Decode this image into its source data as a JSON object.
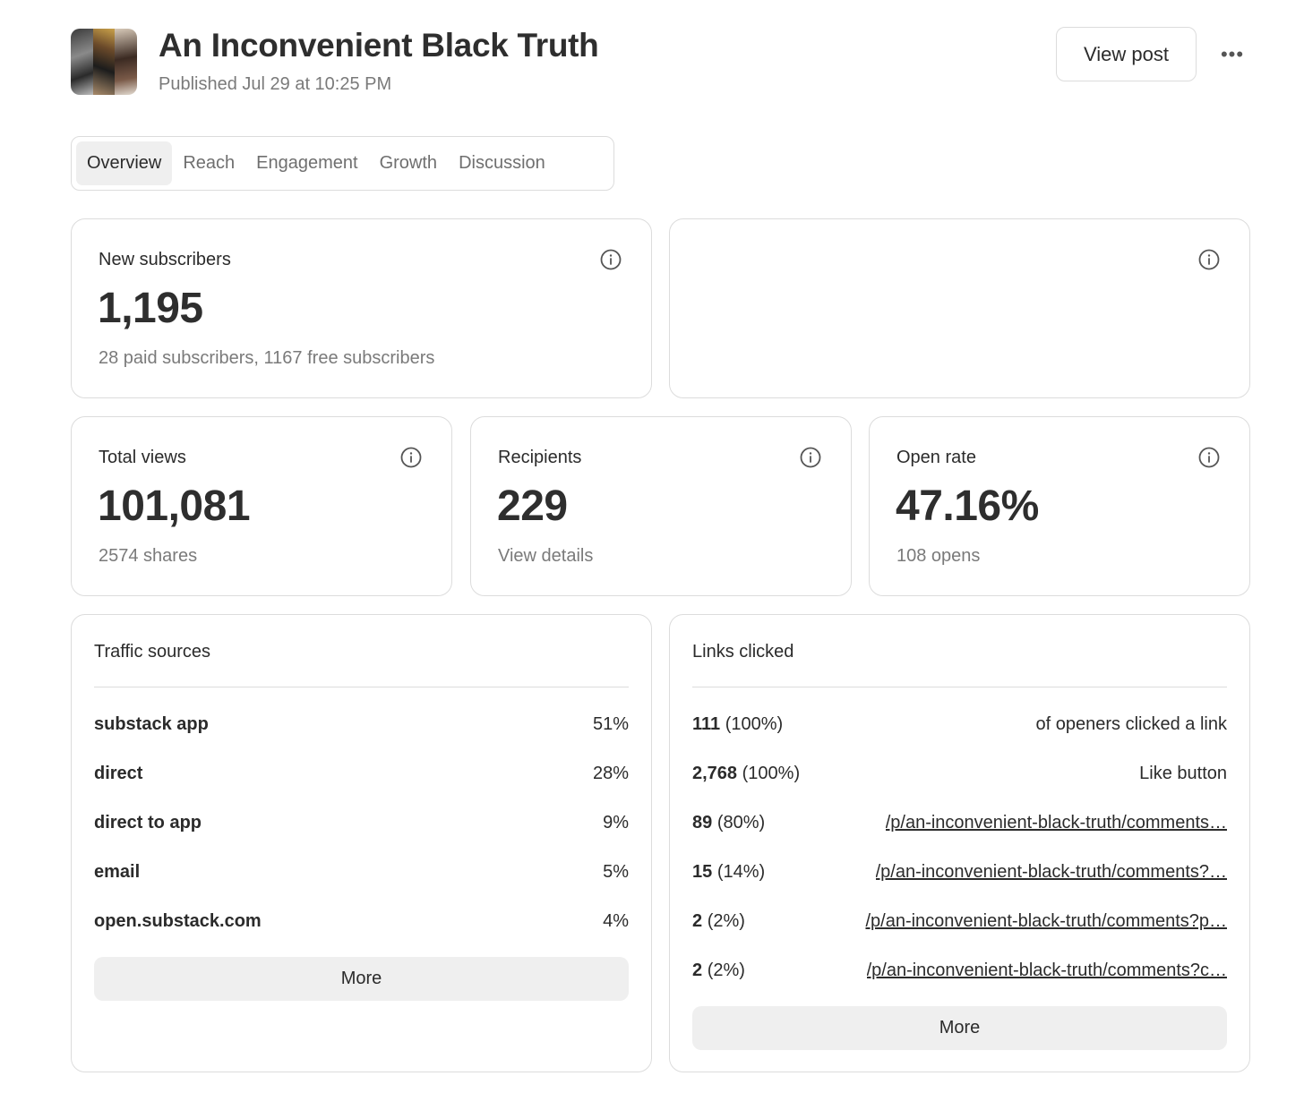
{
  "header": {
    "title": "An Inconvenient Black Truth",
    "published": "Published Jul 29 at 10:25 PM",
    "view_post_label": "View post",
    "more_label": "•••"
  },
  "tabs": [
    {
      "label": "Overview",
      "active": true
    },
    {
      "label": "Reach",
      "active": false
    },
    {
      "label": "Engagement",
      "active": false
    },
    {
      "label": "Growth",
      "active": false
    },
    {
      "label": "Discussion",
      "active": false
    }
  ],
  "new_subscribers": {
    "label": "New subscribers",
    "value": "1,195",
    "sub": "28 paid subscribers, 1167 free subscribers"
  },
  "total_views": {
    "label": "Total views",
    "value": "101,081",
    "sub": "2574 shares"
  },
  "recipients": {
    "label": "Recipients",
    "value": "229",
    "sub": "View details"
  },
  "open_rate": {
    "label": "Open rate",
    "value": "47.16%",
    "sub": "108 opens"
  },
  "traffic_sources": {
    "title": "Traffic sources",
    "rows": [
      {
        "source": "substack app",
        "pct": "51%"
      },
      {
        "source": "direct",
        "pct": "28%"
      },
      {
        "source": "direct to app",
        "pct": "9%"
      },
      {
        "source": "email",
        "pct": "5%"
      },
      {
        "source": "open.substack.com",
        "pct": "4%"
      }
    ],
    "more_label": "More"
  },
  "links_clicked": {
    "title": "Links clicked",
    "rows": [
      {
        "count": "111",
        "pct": "(100%)",
        "target": "of openers clicked a link"
      },
      {
        "count": "2,768",
        "pct": "(100%)",
        "target": "Like button"
      },
      {
        "count": "89",
        "pct": "(80%)",
        "target": "/p/an-inconvenient-black-truth/comments…"
      },
      {
        "count": "15",
        "pct": "(14%)",
        "target": "/p/an-inconvenient-black-truth/comments?…"
      },
      {
        "count": "2",
        "pct": "(2%)",
        "target": "/p/an-inconvenient-black-truth/comments?p…"
      },
      {
        "count": "2",
        "pct": "(2%)",
        "target": "/p/an-inconvenient-black-truth/comments?c…"
      }
    ],
    "more_label": "More"
  },
  "icons": {
    "info": "info-icon",
    "more": "more-horizontal-icon"
  }
}
